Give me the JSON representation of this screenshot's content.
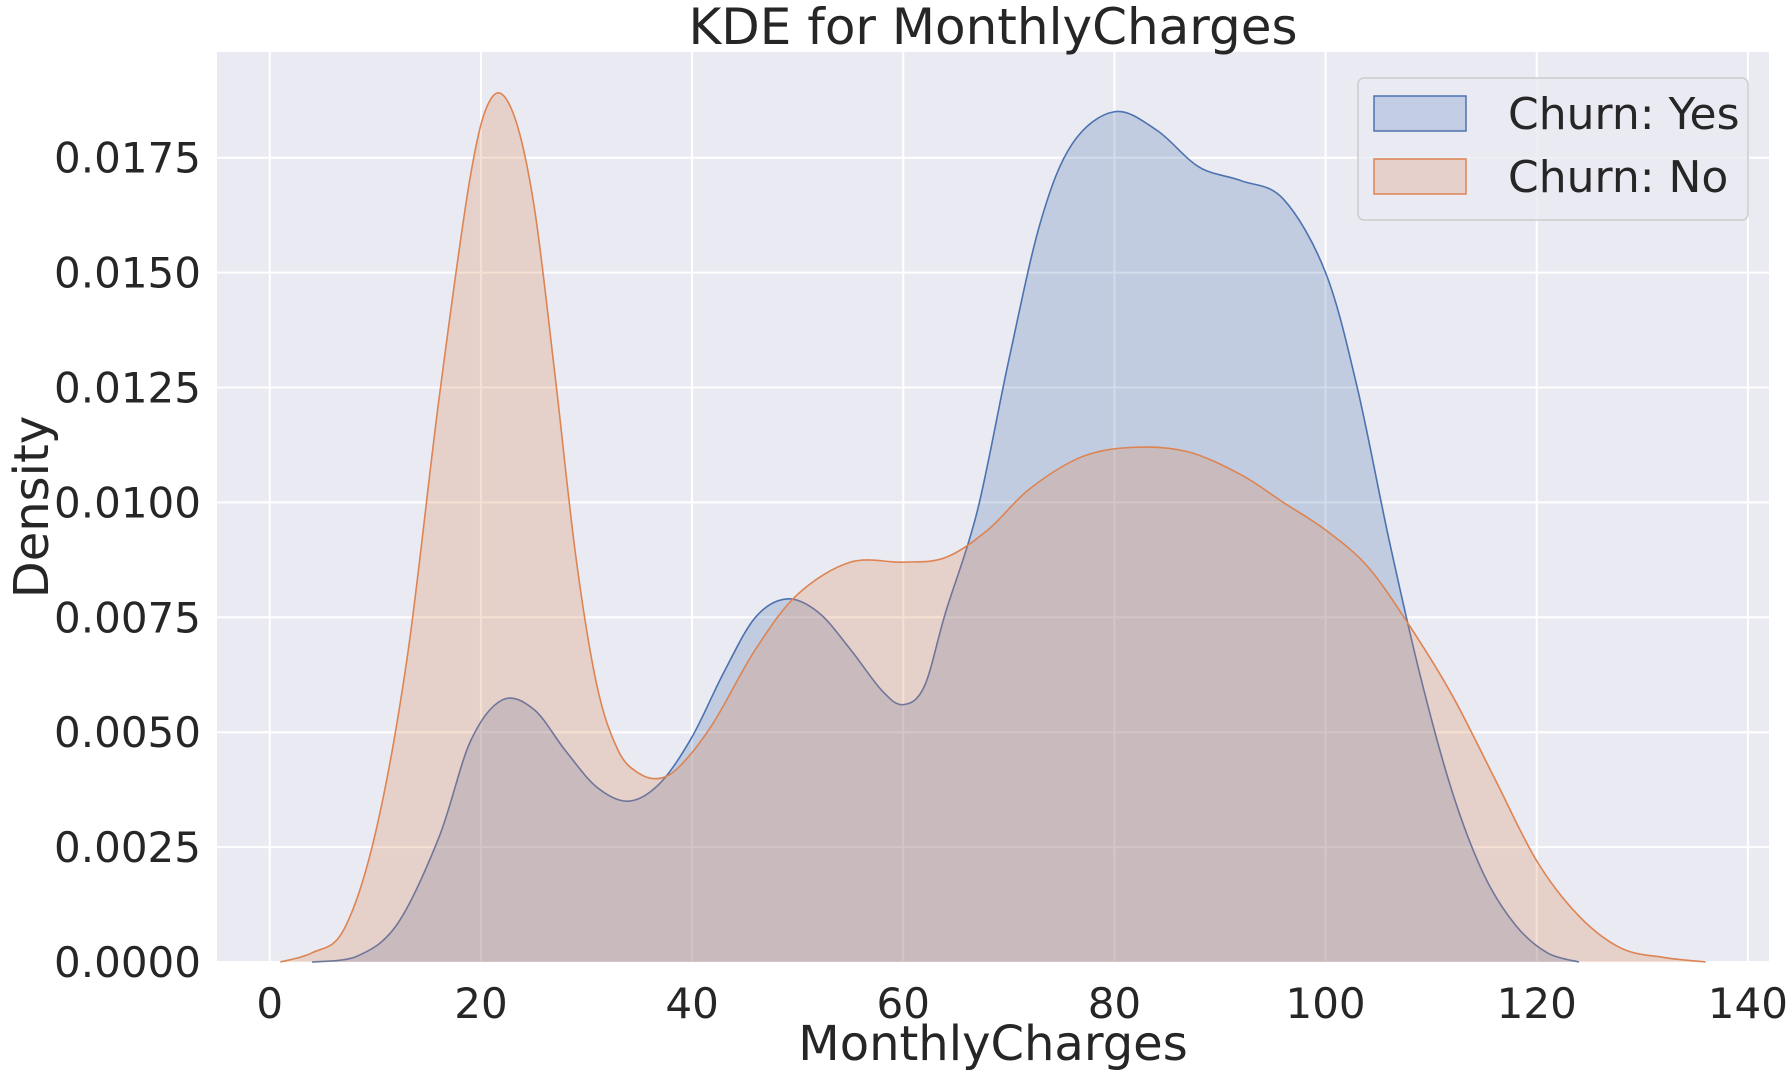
{
  "chart_data": {
    "type": "area",
    "title": "KDE for MonthlyCharges",
    "xlabel": "MonthlyCharges",
    "ylabel": "Density",
    "xlim": [
      -5,
      142
    ],
    "ylim": [
      0,
      0.0198
    ],
    "xticks": [
      "0",
      "20",
      "40",
      "60",
      "80",
      "100",
      "120",
      "140"
    ],
    "yticks": [
      "0.0000",
      "0.0025",
      "0.0050",
      "0.0075",
      "0.0100",
      "0.0125",
      "0.0150",
      "0.0175"
    ],
    "grid": true,
    "legend_position": "top-right",
    "series": [
      {
        "name": "Churn: Yes",
        "line_color": "#4c72b0",
        "fill_color": "#4c72b0",
        "points": [
          [
            4,
            0.0
          ],
          [
            8,
            0.0001
          ],
          [
            12,
            0.0008
          ],
          [
            16,
            0.0027
          ],
          [
            19,
            0.0048
          ],
          [
            22,
            0.0057
          ],
          [
            25,
            0.0055
          ],
          [
            28,
            0.0046
          ],
          [
            31,
            0.0038
          ],
          [
            34,
            0.0035
          ],
          [
            37,
            0.0039
          ],
          [
            40,
            0.0049
          ],
          [
            43,
            0.0063
          ],
          [
            46,
            0.0075
          ],
          [
            49,
            0.0079
          ],
          [
            52,
            0.0076
          ],
          [
            55,
            0.0068
          ],
          [
            58,
            0.0059
          ],
          [
            60,
            0.0056
          ],
          [
            62,
            0.006
          ],
          [
            64,
            0.0076
          ],
          [
            67,
            0.0098
          ],
          [
            70,
            0.0131
          ],
          [
            73,
            0.0161
          ],
          [
            76,
            0.0178
          ],
          [
            80,
            0.0185
          ],
          [
            84,
            0.0181
          ],
          [
            88,
            0.0173
          ],
          [
            92,
            0.017
          ],
          [
            96,
            0.0166
          ],
          [
            100,
            0.015
          ],
          [
            103,
            0.0125
          ],
          [
            106,
            0.0092
          ],
          [
            109,
            0.0062
          ],
          [
            112,
            0.0037
          ],
          [
            115,
            0.0019
          ],
          [
            118,
            0.0008
          ],
          [
            121,
            0.0002
          ],
          [
            124,
            0.0
          ]
        ]
      },
      {
        "name": "Churn: No",
        "line_color": "#dd8452",
        "fill_color": "#dd8452",
        "points": [
          [
            1,
            0.0
          ],
          [
            4,
            0.0002
          ],
          [
            7,
            0.0007
          ],
          [
            10,
            0.0028
          ],
          [
            13,
            0.0066
          ],
          [
            16,
            0.0122
          ],
          [
            19,
            0.0171
          ],
          [
            21,
            0.0188
          ],
          [
            23,
            0.0185
          ],
          [
            25,
            0.0165
          ],
          [
            27,
            0.0128
          ],
          [
            29,
            0.0088
          ],
          [
            31,
            0.006
          ],
          [
            33,
            0.0046
          ],
          [
            35,
            0.0041
          ],
          [
            37,
            0.004
          ],
          [
            39,
            0.0043
          ],
          [
            42,
            0.0052
          ],
          [
            46,
            0.0068
          ],
          [
            50,
            0.008
          ],
          [
            55,
            0.0087
          ],
          [
            60,
            0.0087
          ],
          [
            64,
            0.0088
          ],
          [
            68,
            0.0094
          ],
          [
            72,
            0.0103
          ],
          [
            77,
            0.011
          ],
          [
            82,
            0.0112
          ],
          [
            87,
            0.0111
          ],
          [
            92,
            0.0106
          ],
          [
            96,
            0.01
          ],
          [
            100,
            0.0094
          ],
          [
            104,
            0.0086
          ],
          [
            108,
            0.0073
          ],
          [
            112,
            0.0058
          ],
          [
            116,
            0.004
          ],
          [
            120,
            0.0022
          ],
          [
            124,
            0.001
          ],
          [
            128,
            0.0003
          ],
          [
            132,
            0.0001
          ],
          [
            136,
            0.0
          ]
        ]
      }
    ]
  }
}
